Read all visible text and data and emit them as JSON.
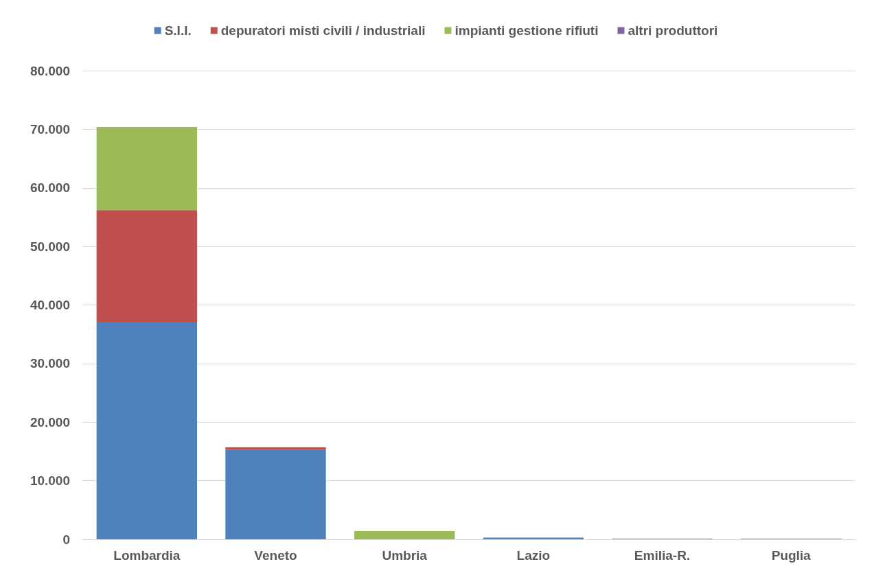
{
  "chart_data": {
    "type": "bar",
    "stacked": true,
    "categories": [
      "Lombardia",
      "Veneto",
      "Umbria",
      "Lazio",
      "Emilia-R.",
      "Puglia"
    ],
    "series": [
      {
        "name": "S.I.I.",
        "color": "#4f81bd",
        "values": [
          37000,
          15250,
          0,
          300,
          0,
          0
        ]
      },
      {
        "name": "depuratori misti civili / industriali",
        "color": "#c0504d",
        "values": [
          19200,
          450,
          0,
          0,
          0,
          100
        ]
      },
      {
        "name": "impianti gestione rifiuti",
        "color": "#9bbb59",
        "values": [
          14200,
          0,
          1400,
          0,
          0,
          0
        ]
      },
      {
        "name": "altri produttori",
        "color": "#8064a2",
        "values": [
          0,
          0,
          0,
          0,
          100,
          0
        ]
      }
    ],
    "ylim": [
      0,
      80000
    ],
    "yticks": [
      {
        "value": 0,
        "label": "0"
      },
      {
        "value": 10000,
        "label": "10.000"
      },
      {
        "value": 20000,
        "label": "20.000"
      },
      {
        "value": 30000,
        "label": "30.000"
      },
      {
        "value": 40000,
        "label": "40.000"
      },
      {
        "value": 50000,
        "label": "50.000"
      },
      {
        "value": 60000,
        "label": "60.000"
      },
      {
        "value": 70000,
        "label": "70.000"
      },
      {
        "value": 80000,
        "label": "80.000"
      }
    ],
    "grid": "y",
    "legend": "top"
  }
}
